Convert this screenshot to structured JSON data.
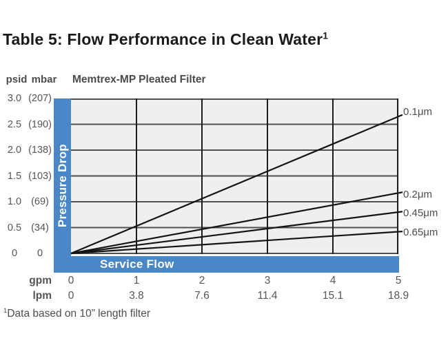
{
  "title": {
    "text": "Table 5: Flow Performance in Clean Water",
    "footnote_marker": "1"
  },
  "chart": {
    "subtitle": "Memtrex-MP Pleated Filter",
    "pressure_drop_band_label": "Pressure Drop",
    "service_flow_band_label": "Service Flow",
    "y_axis": {
      "unit_left": "psid",
      "unit_right": "mbar",
      "rows": [
        {
          "psid": "3.0",
          "mbar": "(207)"
        },
        {
          "psid": "2.5",
          "mbar": "(190)"
        },
        {
          "psid": "2.0",
          "mbar": "(138)"
        },
        {
          "psid": "1.5",
          "mbar": "(103)"
        },
        {
          "psid": "1.0",
          "mbar": "(69)"
        },
        {
          "psid": "0.5",
          "mbar": "(34)"
        },
        {
          "psid": "0",
          "mbar": "0"
        }
      ]
    },
    "x_axis": {
      "unit_row1": "gpm",
      "unit_row2": "lpm",
      "gpm_values": [
        "0",
        "1",
        "2",
        "3",
        "4",
        "5"
      ],
      "lpm_values": [
        "0",
        "3.8",
        "7.6",
        "11.4",
        "15.1",
        "18.9"
      ]
    },
    "series_labels": [
      "0.1μm",
      "0.2μm",
      "0.45μm",
      "0.65μm"
    ]
  },
  "footnote": {
    "marker": "1",
    "text": "Data based on 10” length filter"
  },
  "colors": {
    "band_blue": "#4a87c6",
    "plot_background": "#edeff1",
    "grid_horizontal": "#4f4f4f",
    "grid_vertical": "#1c1c1c",
    "series_line": "#141414",
    "text_gray": "#4d4d4d",
    "title_color": "#1a1a1a"
  },
  "chart_data": {
    "type": "line",
    "title": "Memtrex-MP Pleated Filter",
    "xlabel": "Service Flow",
    "ylabel": "Pressure Drop",
    "xlim": [
      0,
      5
    ],
    "ylim": [
      0,
      3
    ],
    "grid": true,
    "legend_position": "right-edge-labels",
    "x_units": [
      {
        "name": "gpm",
        "ticks": [
          0,
          1,
          2,
          3,
          4,
          5
        ]
      },
      {
        "name": "lpm",
        "ticks": [
          0,
          3.8,
          7.6,
          11.4,
          15.1,
          18.9
        ]
      }
    ],
    "y_units": [
      {
        "name": "psid",
        "ticks": [
          0,
          0.5,
          1.0,
          1.5,
          2.0,
          2.5,
          3.0
        ]
      },
      {
        "name": "mbar",
        "ticks": [
          0,
          34,
          69,
          103,
          138,
          190,
          207
        ]
      }
    ],
    "series": [
      {
        "name": "0.1μm",
        "x": [
          0,
          5
        ],
        "y": [
          0,
          2.65
        ]
      },
      {
        "name": "0.2μm",
        "x": [
          0,
          5
        ],
        "y": [
          0,
          1.17
        ]
      },
      {
        "name": "0.45μm",
        "x": [
          0,
          5
        ],
        "y": [
          0,
          0.8
        ]
      },
      {
        "name": "0.65μm",
        "x": [
          0,
          5
        ],
        "y": [
          0,
          0.42
        ]
      }
    ],
    "footnote": "Data based on 10” length filter"
  }
}
